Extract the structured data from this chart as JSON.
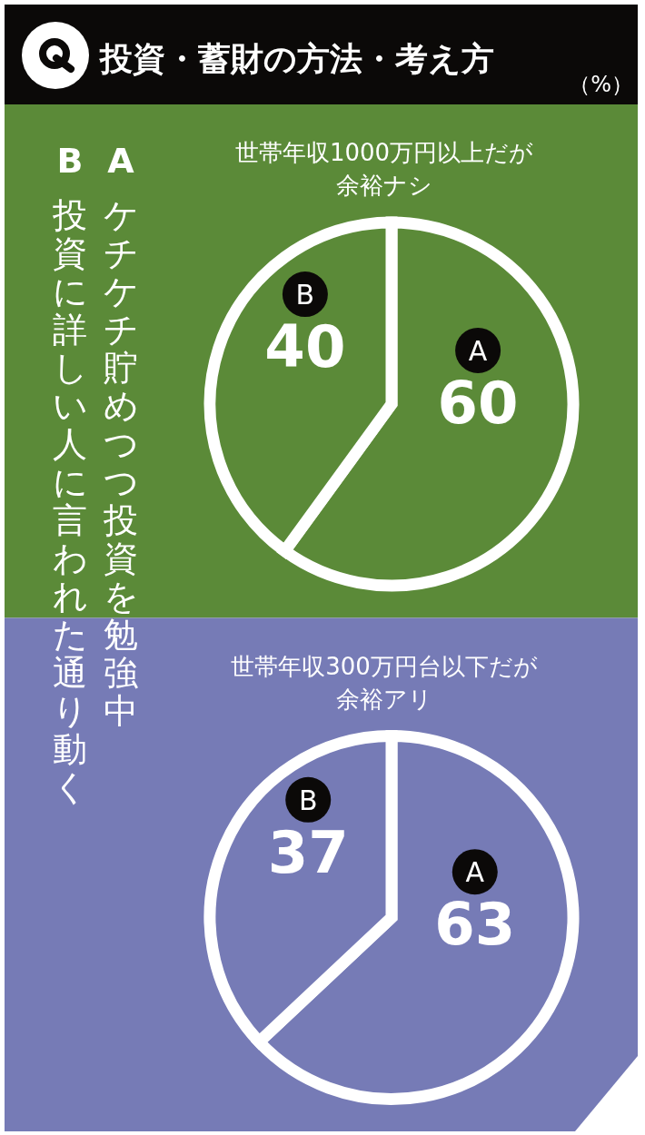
{
  "chart_data": [
    {
      "type": "pie",
      "title": "世帯年収1000万円以上だが余裕ナシ",
      "categories": [
        "A",
        "B"
      ],
      "values": [
        60,
        40
      ],
      "colors": [
        "#5b8a38",
        "#5b8a38"
      ],
      "data_labels": true,
      "annotations": [
        "投資・蓄財の方法・考え方",
        "（%）",
        "ケチケチ貯めつつ投資を勉強中",
        "投資に詳しい人に言われた通り動く"
      ]
    },
    {
      "type": "pie",
      "title": "世帯年収300万円台以下だが余裕アリ",
      "categories": [
        "A",
        "B"
      ],
      "values": [
        63,
        37
      ],
      "colors": [
        "#767bb6",
        "#767bb6"
      ],
      "data_labels": true
    }
  ]
}
